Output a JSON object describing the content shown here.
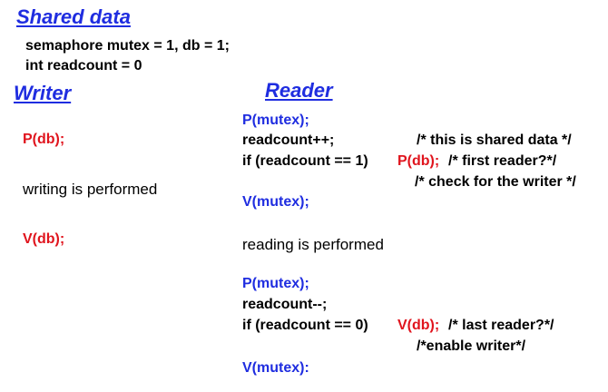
{
  "shared": {
    "title": "Shared data",
    "line1": "semaphore mutex = 1, db = 1;",
    "line2": "int readcount = 0"
  },
  "writer": {
    "title": "Writer",
    "p_db": "P(db);",
    "body": "writing is performed",
    "v_db": "V(db);"
  },
  "reader": {
    "title": "Reader",
    "p_mutex_1": "P(mutex);",
    "inc": "readcount++;",
    "inc_comment": "/* this is shared data */",
    "if1": "if (readcount == 1)",
    "if1_op": "P(db);",
    "if1_comment": "/* first reader?*/",
    "if1_comment2": "/* check for the writer */",
    "v_mutex_1": "V(mutex);",
    "body": "reading is performed",
    "p_mutex_2": "P(mutex);",
    "dec": "readcount--;",
    "if2": "if (readcount == 0)",
    "if2_op": "V(db);",
    "if2_comment": "/* last reader?*/",
    "if2_comment2": "/*enable writer*/",
    "v_mutex_2": "V(mutex):"
  },
  "colors": {
    "heading": "#1f2de0",
    "semaphore_op": "#e0141d",
    "mutex_op": "#1f2de0"
  }
}
